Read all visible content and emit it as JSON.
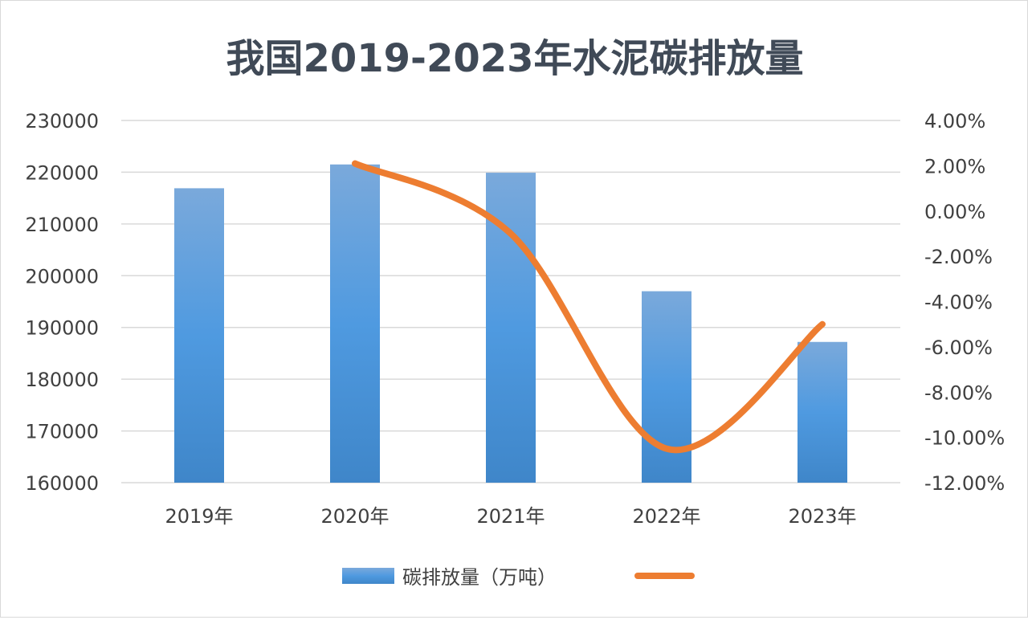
{
  "chart_data": {
    "type": "bar",
    "title": "我国2019-2023年水泥碳排放量",
    "categories": [
      "2019年",
      "2020年",
      "2021年",
      "2022年",
      "2023年"
    ],
    "series": [
      {
        "name": "碳排放量（万吨）",
        "type": "bar",
        "axis": "left",
        "color": "#5b9bd5",
        "values": [
          216900,
          221500,
          219900,
          197000,
          187200
        ]
      },
      {
        "name": "",
        "type": "line",
        "axis": "right",
        "smooth": true,
        "color": "#ed7d31",
        "values": [
          null,
          2.1,
          -1.0,
          -10.5,
          -5.0
        ]
      }
    ],
    "ylim_left": [
      160000,
      230000
    ],
    "yticks_left": [
      "230000",
      "220000",
      "210000",
      "200000",
      "190000",
      "180000",
      "170000",
      "160000"
    ],
    "ylim_right": [
      -12,
      4
    ],
    "yticks_right": [
      "4.00%",
      "2.00%",
      "0.00%",
      "-2.00%",
      "-4.00%",
      "-6.00%",
      "-8.00%",
      "-10.00%",
      "-12.00%"
    ],
    "grid": true,
    "legend_position": "bottom"
  }
}
